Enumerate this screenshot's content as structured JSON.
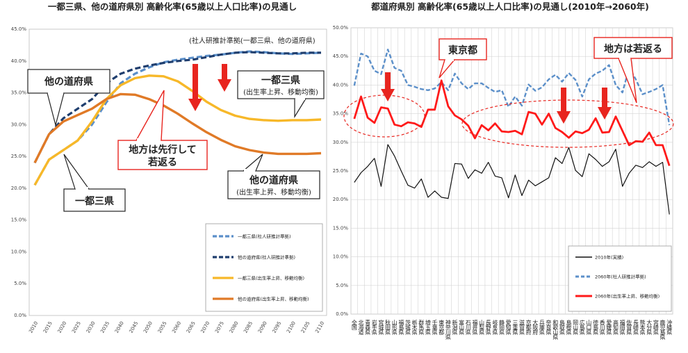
{
  "chart_data": [
    {
      "type": "line",
      "title": "一都三県、他の道府県別 高齢化率(65歳以上人口比率)の見通し",
      "x": [
        2010,
        2015,
        2020,
        2025,
        2030,
        2035,
        2040,
        2045,
        2050,
        2055,
        2060,
        2065,
        2070,
        2075,
        2080,
        2085,
        2090,
        2095,
        2100,
        2105,
        2110
      ],
      "x_tick_labels": [
        "2010",
        "2015",
        "2020",
        "2025",
        "2030",
        "2035",
        "2040",
        "2045",
        "2050",
        "2055",
        "2060",
        "2065",
        "2070",
        "2075",
        "2080",
        "2085",
        "2090",
        "2095",
        "2100",
        "2105",
        "2110"
      ],
      "ylim": [
        0,
        45
      ],
      "y_ticks": [
        0,
        5,
        10,
        15,
        20,
        25,
        30,
        35,
        40,
        45
      ],
      "y_tick_labels": [
        "0.0%",
        "5.0%",
        "10.0%",
        "15.0%",
        "20.0%",
        "25.0%",
        "30.0%",
        "35.0%",
        "40.0%",
        "45.0%"
      ],
      "grid": false,
      "series": [
        {
          "name": "一都三県(社人研推計準拠)",
          "color": "#5b8fc9",
          "dash": true,
          "values": [
            20.5,
            24.5,
            26.0,
            27.5,
            30.0,
            33.5,
            36.5,
            38.0,
            39.0,
            39.8,
            40.2,
            40.5,
            40.8,
            41.0,
            41.3,
            41.5,
            41.4,
            41.2,
            41.1,
            41.2,
            41.3
          ]
        },
        {
          "name": "他の道府県(社人研推計準拠)",
          "color": "#1f3e6e",
          "dash": true,
          "values": [
            24.0,
            28.5,
            31.0,
            32.5,
            34.0,
            36.5,
            38.0,
            38.8,
            39.3,
            39.7,
            40.0,
            40.2,
            40.6,
            41.0,
            41.3,
            41.4,
            41.3,
            41.2,
            41.2,
            41.3,
            41.3
          ]
        },
        {
          "name": "一都三県(出生率上昇、移動均衡)",
          "color": "#f7b829",
          "dash": false,
          "values": [
            20.5,
            24.5,
            26.0,
            27.5,
            30.5,
            34.0,
            36.2,
            37.3,
            37.7,
            37.6,
            36.8,
            35.3,
            33.6,
            32.3,
            31.4,
            30.9,
            30.7,
            30.6,
            30.7,
            30.7,
            30.8
          ]
        },
        {
          "name": "他の道府県(出生率上昇、移動均衡)",
          "color": "#e07a27",
          "dash": false,
          "values": [
            24.0,
            28.5,
            30.5,
            31.5,
            32.5,
            34.0,
            34.8,
            34.7,
            34.0,
            33.0,
            31.7,
            30.2,
            28.8,
            27.6,
            26.6,
            26.0,
            25.6,
            25.4,
            25.4,
            25.4,
            25.5
          ]
        }
      ],
      "legend": "bottom-right",
      "annotations": {
        "note_top": "(社人研推計準拠(一都三県、他の道府県)",
        "other_prefs": "他の道府県",
        "tokyo_area": "一都三県",
        "regions_rejuvenate_1": "地方は先行して",
        "regions_rejuvenate_2": "若返る",
        "tokyo_right_1": "一都三県",
        "tokyo_right_2": "(出生率上昇、移動均衡)",
        "other_right_1": "他の道府県",
        "other_right_2": "(出生率上昇、移動均衡)"
      },
      "colors": {
        "arrow": "#e8251f"
      }
    },
    {
      "type": "line",
      "title": "都道府県別 高齢化率(65歳以上人口比率)の見通し(2010年→2060年)",
      "categories": [
        "全国",
        "北海道",
        "青森県",
        "岩手県",
        "宮城県",
        "秋田県",
        "山形県",
        "福島県",
        "茨城県",
        "栃木県",
        "群馬県",
        "埼玉県",
        "千葉県",
        "東京都",
        "神奈川県",
        "新潟県",
        "富山県",
        "石川県",
        "福井県",
        "山梨県",
        "長野県",
        "岐阜県",
        "静岡県",
        "愛知県",
        "三重県",
        "滋賀県",
        "京都府",
        "大阪府",
        "兵庫県",
        "奈良県",
        "和歌山県",
        "鳥取県",
        "島根県",
        "岡山県",
        "広島県",
        "山口県",
        "徳島県",
        "香川県",
        "愛媛県",
        "高知県",
        "福岡県",
        "佐賀県",
        "長崎県",
        "熊本県",
        "大分県",
        "宮崎県",
        "鹿児島県",
        "沖縄県"
      ],
      "ylim": [
        0,
        50
      ],
      "y_ticks": [
        0,
        5,
        10,
        15,
        20,
        25,
        30,
        35,
        40,
        45,
        50
      ],
      "y_tick_labels": [
        "0.0%",
        "5.0%",
        "10.0%",
        "15.0%",
        "20.0%",
        "25.0%",
        "30.0%",
        "35.0%",
        "40.0%",
        "45.0%",
        "50.0%"
      ],
      "grid": true,
      "series": [
        {
          "name": "2010年(実績)",
          "color": "#111111",
          "dash": false,
          "values": [
            23.0,
            24.7,
            25.8,
            27.2,
            22.3,
            29.6,
            27.6,
            25.0,
            22.5,
            22.0,
            23.6,
            20.4,
            21.5,
            20.4,
            20.2,
            26.3,
            26.2,
            23.7,
            25.2,
            24.6,
            26.5,
            24.1,
            23.8,
            20.3,
            24.3,
            20.7,
            23.4,
            22.4,
            23.1,
            23.8,
            27.3,
            26.3,
            29.1,
            25.1,
            24.0,
            28.0,
            27.0,
            25.8,
            26.6,
            28.8,
            22.3,
            24.6,
            26.0,
            25.6,
            26.6,
            25.8,
            26.5,
            17.4
          ]
        },
        {
          "name": "2060年(社人研推計準拠)",
          "color": "#5b8fc9",
          "dash": true,
          "values": [
            39.9,
            45.5,
            45.0,
            42.5,
            41.9,
            46.2,
            43.0,
            42.5,
            40.0,
            39.7,
            39.3,
            39.1,
            39.4,
            40.5,
            39.1,
            42.0,
            40.3,
            39.3,
            40.3,
            40.3,
            39.5,
            38.8,
            39.1,
            36.2,
            38.0,
            36.4,
            40.1,
            39.0,
            39.6,
            41.0,
            41.8,
            40.6,
            42.1,
            40.9,
            38.0,
            41.0,
            42.0,
            42.5,
            43.5,
            40.0,
            38.7,
            43.0,
            41.0,
            38.4,
            38.8,
            39.3,
            40.0,
            33.0
          ]
        },
        {
          "name": "2060年(出生率上昇、移動均衡)",
          "color": "#ff1a1a",
          "dash": false,
          "values": [
            34.1,
            38.0,
            34.3,
            33.4,
            36.1,
            35.9,
            33.1,
            32.8,
            33.5,
            33.3,
            32.7,
            35.7,
            35.7,
            40.8,
            36.3,
            34.7,
            34.0,
            32.9,
            30.7,
            33.0,
            32.1,
            33.3,
            31.9,
            31.8,
            32.0,
            31.4,
            35.3,
            35.0,
            33.1,
            35.0,
            32.5,
            31.8,
            30.8,
            31.9,
            31.6,
            32.2,
            34.2,
            31.7,
            31.8,
            34.5,
            32.0,
            29.5,
            30.2,
            30.1,
            31.7,
            29.5,
            29.5,
            25.9
          ]
        }
      ],
      "legend": "bottom-right",
      "annotations": {
        "tokyo": "東京都",
        "regions_rejuvenate": "地方は若返る"
      },
      "colors": {
        "arrow": "#e8251f"
      }
    }
  ]
}
